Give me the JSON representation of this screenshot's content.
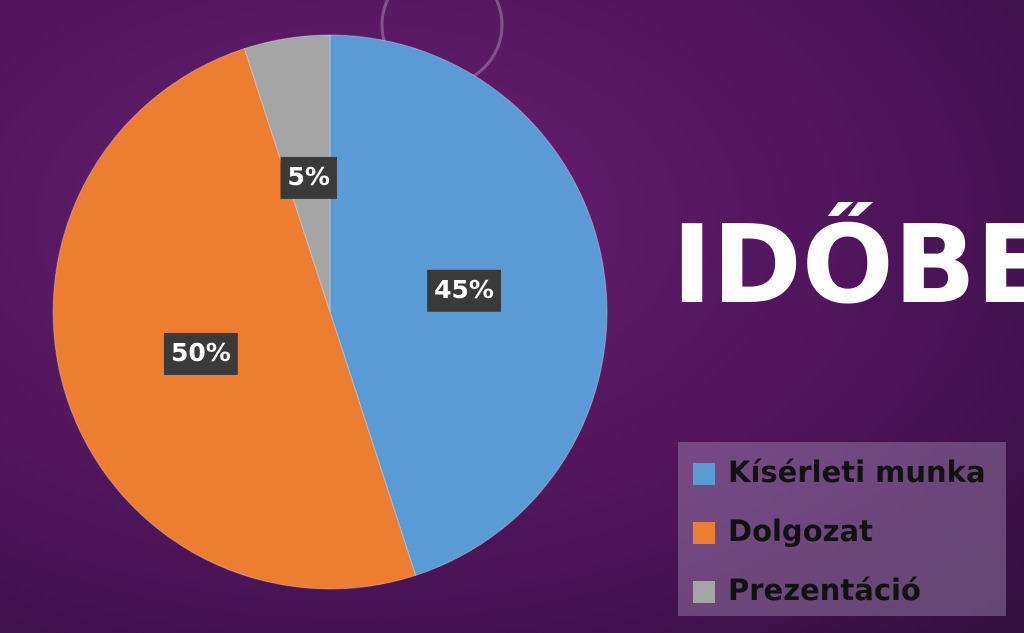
{
  "chart_data": {
    "type": "pie",
    "title": "IDŐBE",
    "categories": [
      "Kísérleti munka",
      "Dolgozat",
      "Prezentáció"
    ],
    "values": [
      45,
      50,
      5
    ],
    "value_labels": [
      "45%",
      "50%",
      "5%"
    ],
    "colors": [
      "#5b9bd5",
      "#ed7d31",
      "#a5a5a5"
    ]
  }
}
